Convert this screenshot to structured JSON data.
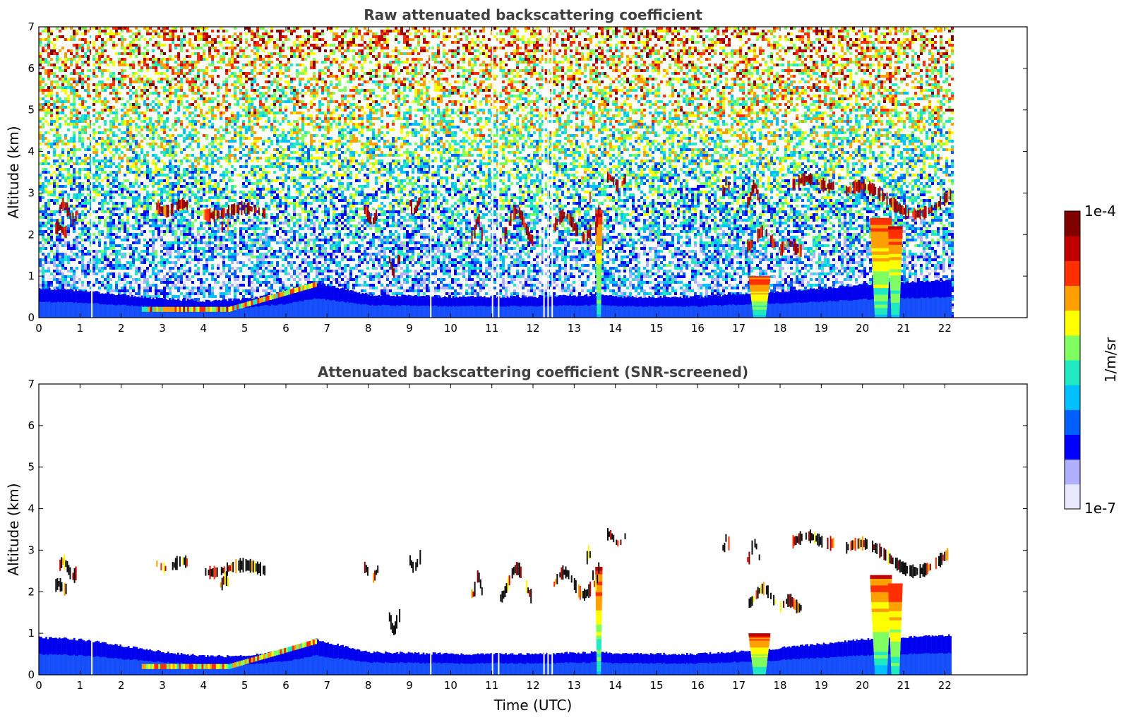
{
  "chart_data": [
    {
      "type": "heatmap",
      "title": "Raw attenuated backscattering coefficient",
      "xlabel": "",
      "ylabel": "Altitude (km)",
      "xlim": [
        0,
        24
      ],
      "ylim": [
        0,
        7
      ],
      "xticks": [
        "0",
        "1",
        "2",
        "3",
        "4",
        "5",
        "6",
        "7",
        "8",
        "9",
        "10",
        "11",
        "12",
        "13",
        "14",
        "15",
        "16",
        "17",
        "18",
        "19",
        "20",
        "21",
        "22"
      ],
      "yticks": [
        "0",
        "1",
        "2",
        "3",
        "4",
        "5",
        "6",
        "7"
      ],
      "data_end_time": 22.15,
      "screened": false,
      "noise_background": true,
      "boundary_layer": {
        "time": [
          0,
          1,
          2,
          3,
          4,
          5,
          6,
          6.7,
          8,
          10,
          12,
          13.6,
          14,
          16,
          17.5,
          19,
          20,
          21,
          22.15
        ],
        "top_km": [
          0.7,
          0.65,
          0.55,
          0.45,
          0.4,
          0.45,
          0.6,
          0.85,
          0.55,
          0.5,
          0.5,
          0.55,
          0.5,
          0.5,
          0.6,
          0.7,
          0.8,
          0.85,
          0.9
        ]
      },
      "aerosol_layer": {
        "time": [
          2.5,
          6.7
        ],
        "peak_km": 0.2
      },
      "cloud_segments": [
        {
          "t0": 0.5,
          "t1": 0.95,
          "z0": 2.35,
          "z1": 2.75
        },
        {
          "t0": 0.4,
          "t1": 0.7,
          "z0": 2.05,
          "z1": 2.2
        },
        {
          "t0": 2.85,
          "t1": 3.6,
          "z0": 2.55,
          "z1": 2.75
        },
        {
          "t0": 4.0,
          "t1": 5.5,
          "z0": 2.45,
          "z1": 2.65
        },
        {
          "t0": 4.4,
          "t1": 4.6,
          "z0": 2.15,
          "z1": 2.35
        },
        {
          "t0": 7.9,
          "t1": 8.25,
          "z0": 2.3,
          "z1": 2.6
        },
        {
          "t0": 8.5,
          "t1": 8.75,
          "z0": 1.05,
          "z1": 1.45
        },
        {
          "t0": 9.0,
          "t1": 9.3,
          "z0": 2.55,
          "z1": 2.85
        },
        {
          "t0": 10.5,
          "t1": 10.75,
          "z0": 1.9,
          "z1": 2.4
        },
        {
          "t0": 11.2,
          "t1": 12.0,
          "z0": 1.8,
          "z1": 2.6
        },
        {
          "t0": 12.5,
          "t1": 13.4,
          "z0": 1.9,
          "z1": 2.5
        },
        {
          "t0": 13.3,
          "t1": 13.6,
          "z0": 2.1,
          "z1": 3.0
        },
        {
          "t0": 13.8,
          "t1": 14.25,
          "z0": 3.15,
          "z1": 3.4
        },
        {
          "t0": 16.6,
          "t1": 16.75,
          "z0": 3.0,
          "z1": 3.4
        },
        {
          "t0": 17.2,
          "t1": 17.5,
          "z0": 2.75,
          "z1": 3.2
        },
        {
          "t0": 17.2,
          "t1": 17.9,
          "z0": 1.7,
          "z1": 2.1
        },
        {
          "t0": 18.0,
          "t1": 18.5,
          "z0": 1.6,
          "z1": 1.8
        },
        {
          "t0": 18.3,
          "t1": 19.3,
          "z0": 3.15,
          "z1": 3.35
        },
        {
          "t0": 19.6,
          "t1": 22.15,
          "z0": 2.45,
          "z1": 3.2
        }
      ],
      "plumes": [
        {
          "t": 13.6,
          "z1": 2.6,
          "w": 0.1
        },
        {
          "t": 17.5,
          "z1": 1.0,
          "w": 0.3
        },
        {
          "t": 20.45,
          "z1": 2.4,
          "w": 0.3
        },
        {
          "t": 20.8,
          "z1": 2.2,
          "w": 0.2
        }
      ],
      "gaps": [
        1.27,
        11.0,
        11.15,
        12.25,
        12.35,
        12.45,
        9.5
      ]
    },
    {
      "type": "heatmap",
      "title": "Attenuated backscattering coefficient (SNR-screened)",
      "xlabel": "Time (UTC)",
      "ylabel": "Altitude (km)",
      "xlim": [
        0,
        24
      ],
      "ylim": [
        0,
        7
      ],
      "xticks": [
        "0",
        "1",
        "2",
        "3",
        "4",
        "5",
        "6",
        "7",
        "8",
        "9",
        "10",
        "11",
        "12",
        "13",
        "14",
        "15",
        "16",
        "17",
        "18",
        "19",
        "20",
        "21",
        "22"
      ],
      "yticks": [
        "0",
        "1",
        "2",
        "3",
        "4",
        "5",
        "6",
        "7"
      ],
      "data_end_time": 22.15,
      "screened": true,
      "noise_background": false,
      "boundary_layer": {
        "time": [
          0,
          1,
          2,
          3,
          4,
          5,
          6,
          6.7,
          8,
          10,
          12,
          13.6,
          14,
          16,
          17.5,
          19,
          20,
          21,
          22.15
        ],
        "top_km": [
          0.9,
          0.85,
          0.7,
          0.55,
          0.45,
          0.45,
          0.6,
          0.85,
          0.55,
          0.5,
          0.5,
          0.55,
          0.5,
          0.5,
          0.6,
          0.75,
          0.85,
          0.9,
          0.95
        ]
      },
      "aerosol_layer": {
        "time": [
          2.5,
          6.7
        ],
        "peak_km": 0.2
      },
      "cloud_segments": [
        {
          "t0": 0.5,
          "t1": 0.95,
          "z0": 2.35,
          "z1": 2.75
        },
        {
          "t0": 0.4,
          "t1": 0.7,
          "z0": 2.05,
          "z1": 2.2
        },
        {
          "t0": 2.85,
          "t1": 3.6,
          "z0": 2.55,
          "z1": 2.75
        },
        {
          "t0": 4.0,
          "t1": 5.5,
          "z0": 2.45,
          "z1": 2.65
        },
        {
          "t0": 4.4,
          "t1": 4.6,
          "z0": 2.15,
          "z1": 2.35
        },
        {
          "t0": 7.9,
          "t1": 8.25,
          "z0": 2.3,
          "z1": 2.6
        },
        {
          "t0": 8.5,
          "t1": 8.75,
          "z0": 1.05,
          "z1": 1.45
        },
        {
          "t0": 9.0,
          "t1": 9.3,
          "z0": 2.55,
          "z1": 2.85
        },
        {
          "t0": 10.5,
          "t1": 10.75,
          "z0": 1.9,
          "z1": 2.4
        },
        {
          "t0": 11.2,
          "t1": 12.0,
          "z0": 1.8,
          "z1": 2.6
        },
        {
          "t0": 12.5,
          "t1": 13.4,
          "z0": 1.9,
          "z1": 2.5
        },
        {
          "t0": 13.3,
          "t1": 13.6,
          "z0": 2.1,
          "z1": 3.0
        },
        {
          "t0": 13.8,
          "t1": 14.25,
          "z0": 3.15,
          "z1": 3.4
        },
        {
          "t0": 16.6,
          "t1": 16.75,
          "z0": 3.0,
          "z1": 3.4
        },
        {
          "t0": 17.2,
          "t1": 17.5,
          "z0": 2.75,
          "z1": 3.2
        },
        {
          "t0": 17.2,
          "t1": 17.9,
          "z0": 1.7,
          "z1": 2.1
        },
        {
          "t0": 18.0,
          "t1": 18.5,
          "z0": 1.6,
          "z1": 1.8
        },
        {
          "t0": 18.3,
          "t1": 19.3,
          "z0": 3.15,
          "z1": 3.35
        },
        {
          "t0": 19.6,
          "t1": 22.15,
          "z0": 2.45,
          "z1": 3.2
        }
      ],
      "plumes": [
        {
          "t": 13.6,
          "z1": 2.6,
          "w": 0.1
        },
        {
          "t": 17.5,
          "z1": 1.0,
          "w": 0.3
        },
        {
          "t": 20.45,
          "z1": 2.4,
          "w": 0.3
        },
        {
          "t": 20.8,
          "z1": 2.2,
          "w": 0.2
        }
      ],
      "gaps": [
        1.27,
        11.0,
        11.15,
        12.25,
        12.35,
        12.45,
        9.5
      ]
    }
  ],
  "colorbar": {
    "label": "1/m/sr",
    "max_label": "1e-4",
    "min_label": "1e-7",
    "colors": [
      "#e8e8ff",
      "#b0b0ff",
      "#0000ff",
      "#0060ff",
      "#00c0ff",
      "#20e8c0",
      "#80ff60",
      "#ffff00",
      "#ffa000",
      "#ff3000",
      "#c00000",
      "#800000"
    ]
  }
}
